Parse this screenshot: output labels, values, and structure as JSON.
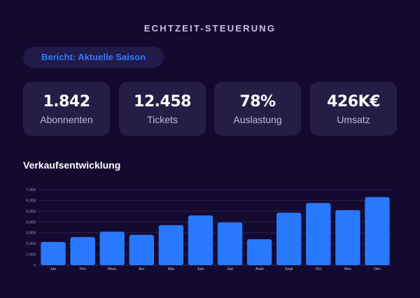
{
  "header": {
    "title": "ECHTZEIT-STEUERUNG"
  },
  "report": {
    "label": "Bericht: Aktuelle Saison"
  },
  "kpis": [
    {
      "value": "1.842",
      "label": "Abonnenten"
    },
    {
      "value": "12.458",
      "label": "Tickets"
    },
    {
      "value": "78%",
      "label": "Auslastung"
    },
    {
      "value": "426K€",
      "label": "Umsatz"
    }
  ],
  "section": {
    "title": "Verkaufsentwicklung"
  },
  "colors": {
    "background": "#140a30",
    "card": "#261d47",
    "accent": "#2f7bff",
    "bar": "#2979ff"
  },
  "chart_data": {
    "type": "bar",
    "categories": [
      "Jan",
      "Fév",
      "Mars",
      "Avr",
      "Mai",
      "Juin",
      "Juil",
      "Août",
      "Sept",
      "Oct",
      "Nov",
      "Déc"
    ],
    "values": [
      2150,
      2600,
      3100,
      2800,
      3700,
      4600,
      3950,
      2400,
      4850,
      5750,
      5100,
      6300
    ],
    "ylim": [
      0,
      7000
    ],
    "yticks": [
      "0",
      "1,000",
      "2,000",
      "3,000",
      "4,000",
      "5,000",
      "6,000",
      "7,000"
    ],
    "grid": true,
    "title": "",
    "xlabel": "",
    "ylabel": ""
  }
}
